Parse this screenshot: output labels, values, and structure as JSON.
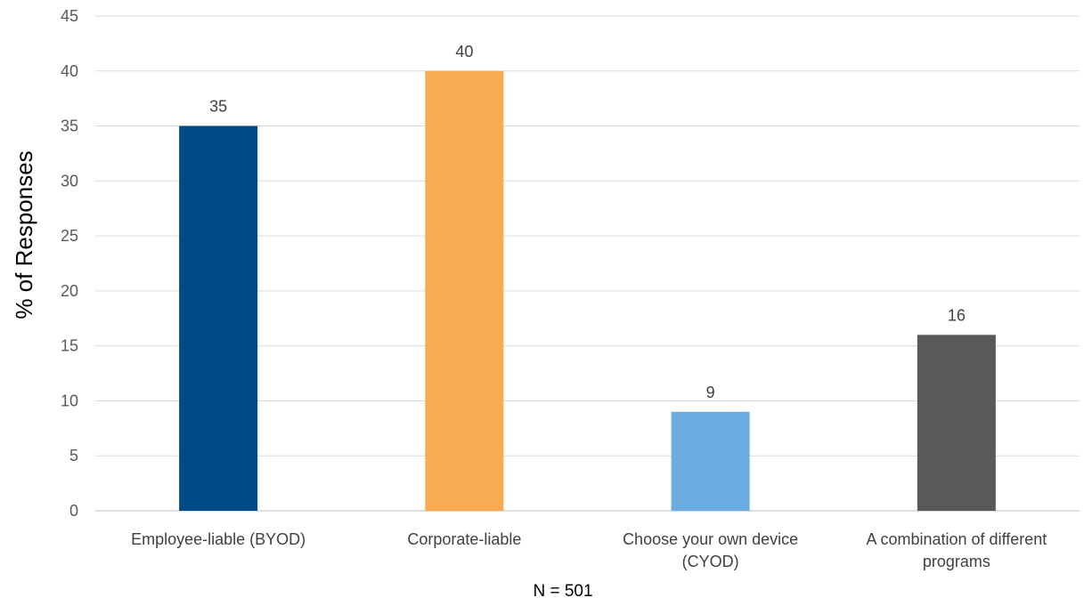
{
  "chart_data": {
    "type": "bar",
    "categories": [
      [
        "Employee-liable (BYOD)"
      ],
      [
        "Corporate-liable"
      ],
      [
        "Choose your own device",
        "(CYOD)"
      ],
      [
        "A combination of different",
        "programs"
      ]
    ],
    "values": [
      35,
      40,
      9,
      16
    ],
    "value_labels": [
      "35",
      "40",
      "9",
      "16"
    ],
    "colors": [
      "#004b87",
      "#f9ab52",
      "#6aacdf",
      "#595959"
    ],
    "ylabel": "% of Responses",
    "xlabel": "N = 501",
    "ylim": [
      0,
      45
    ],
    "yticks": [
      0,
      5,
      10,
      15,
      20,
      25,
      30,
      35,
      40,
      45
    ],
    "grid": true,
    "legend": "none"
  }
}
